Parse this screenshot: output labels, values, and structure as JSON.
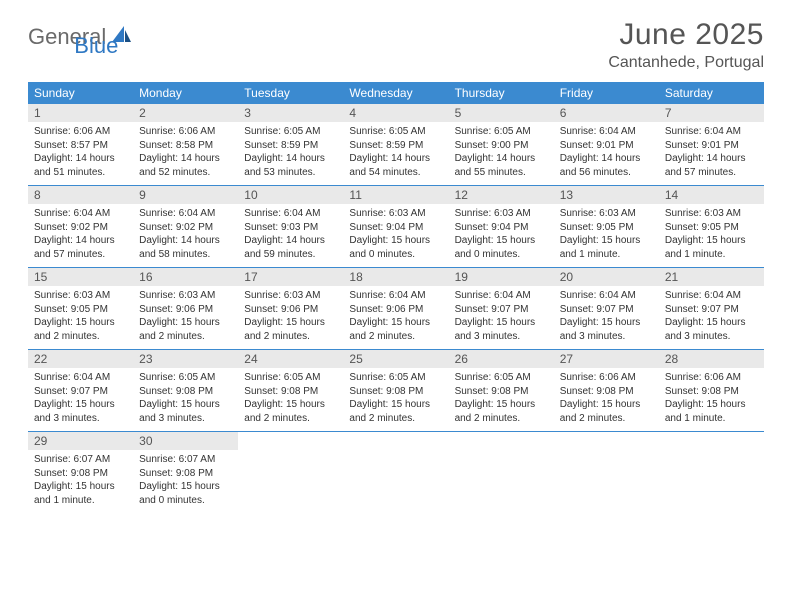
{
  "logo": {
    "text1": "General",
    "text2": "Blue"
  },
  "title": "June 2025",
  "location": "Cantanhede, Portugal",
  "colors": {
    "header_bg": "#3b8ad0",
    "header_text": "#ffffff",
    "daynum_bg": "#e9e9e9",
    "body_text": "#333333",
    "rule": "#3b8ad0"
  },
  "weekdays": [
    "Sunday",
    "Monday",
    "Tuesday",
    "Wednesday",
    "Thursday",
    "Friday",
    "Saturday"
  ],
  "weeks": [
    [
      {
        "n": "1",
        "sunrise": "6:06 AM",
        "sunset": "8:57 PM",
        "daylight": "14 hours and 51 minutes."
      },
      {
        "n": "2",
        "sunrise": "6:06 AM",
        "sunset": "8:58 PM",
        "daylight": "14 hours and 52 minutes."
      },
      {
        "n": "3",
        "sunrise": "6:05 AM",
        "sunset": "8:59 PM",
        "daylight": "14 hours and 53 minutes."
      },
      {
        "n": "4",
        "sunrise": "6:05 AM",
        "sunset": "8:59 PM",
        "daylight": "14 hours and 54 minutes."
      },
      {
        "n": "5",
        "sunrise": "6:05 AM",
        "sunset": "9:00 PM",
        "daylight": "14 hours and 55 minutes."
      },
      {
        "n": "6",
        "sunrise": "6:04 AM",
        "sunset": "9:01 PM",
        "daylight": "14 hours and 56 minutes."
      },
      {
        "n": "7",
        "sunrise": "6:04 AM",
        "sunset": "9:01 PM",
        "daylight": "14 hours and 57 minutes."
      }
    ],
    [
      {
        "n": "8",
        "sunrise": "6:04 AM",
        "sunset": "9:02 PM",
        "daylight": "14 hours and 57 minutes."
      },
      {
        "n": "9",
        "sunrise": "6:04 AM",
        "sunset": "9:02 PM",
        "daylight": "14 hours and 58 minutes."
      },
      {
        "n": "10",
        "sunrise": "6:04 AM",
        "sunset": "9:03 PM",
        "daylight": "14 hours and 59 minutes."
      },
      {
        "n": "11",
        "sunrise": "6:03 AM",
        "sunset": "9:04 PM",
        "daylight": "15 hours and 0 minutes."
      },
      {
        "n": "12",
        "sunrise": "6:03 AM",
        "sunset": "9:04 PM",
        "daylight": "15 hours and 0 minutes."
      },
      {
        "n": "13",
        "sunrise": "6:03 AM",
        "sunset": "9:05 PM",
        "daylight": "15 hours and 1 minute."
      },
      {
        "n": "14",
        "sunrise": "6:03 AM",
        "sunset": "9:05 PM",
        "daylight": "15 hours and 1 minute."
      }
    ],
    [
      {
        "n": "15",
        "sunrise": "6:03 AM",
        "sunset": "9:05 PM",
        "daylight": "15 hours and 2 minutes."
      },
      {
        "n": "16",
        "sunrise": "6:03 AM",
        "sunset": "9:06 PM",
        "daylight": "15 hours and 2 minutes."
      },
      {
        "n": "17",
        "sunrise": "6:03 AM",
        "sunset": "9:06 PM",
        "daylight": "15 hours and 2 minutes."
      },
      {
        "n": "18",
        "sunrise": "6:04 AM",
        "sunset": "9:06 PM",
        "daylight": "15 hours and 2 minutes."
      },
      {
        "n": "19",
        "sunrise": "6:04 AM",
        "sunset": "9:07 PM",
        "daylight": "15 hours and 3 minutes."
      },
      {
        "n": "20",
        "sunrise": "6:04 AM",
        "sunset": "9:07 PM",
        "daylight": "15 hours and 3 minutes."
      },
      {
        "n": "21",
        "sunrise": "6:04 AM",
        "sunset": "9:07 PM",
        "daylight": "15 hours and 3 minutes."
      }
    ],
    [
      {
        "n": "22",
        "sunrise": "6:04 AM",
        "sunset": "9:07 PM",
        "daylight": "15 hours and 3 minutes."
      },
      {
        "n": "23",
        "sunrise": "6:05 AM",
        "sunset": "9:08 PM",
        "daylight": "15 hours and 3 minutes."
      },
      {
        "n": "24",
        "sunrise": "6:05 AM",
        "sunset": "9:08 PM",
        "daylight": "15 hours and 2 minutes."
      },
      {
        "n": "25",
        "sunrise": "6:05 AM",
        "sunset": "9:08 PM",
        "daylight": "15 hours and 2 minutes."
      },
      {
        "n": "26",
        "sunrise": "6:05 AM",
        "sunset": "9:08 PM",
        "daylight": "15 hours and 2 minutes."
      },
      {
        "n": "27",
        "sunrise": "6:06 AM",
        "sunset": "9:08 PM",
        "daylight": "15 hours and 2 minutes."
      },
      {
        "n": "28",
        "sunrise": "6:06 AM",
        "sunset": "9:08 PM",
        "daylight": "15 hours and 1 minute."
      }
    ],
    [
      {
        "n": "29",
        "sunrise": "6:07 AM",
        "sunset": "9:08 PM",
        "daylight": "15 hours and 1 minute."
      },
      {
        "n": "30",
        "sunrise": "6:07 AM",
        "sunset": "9:08 PM",
        "daylight": "15 hours and 0 minutes."
      },
      null,
      null,
      null,
      null,
      null
    ]
  ],
  "labels": {
    "sunrise": "Sunrise:",
    "sunset": "Sunset:",
    "daylight": "Daylight:"
  }
}
